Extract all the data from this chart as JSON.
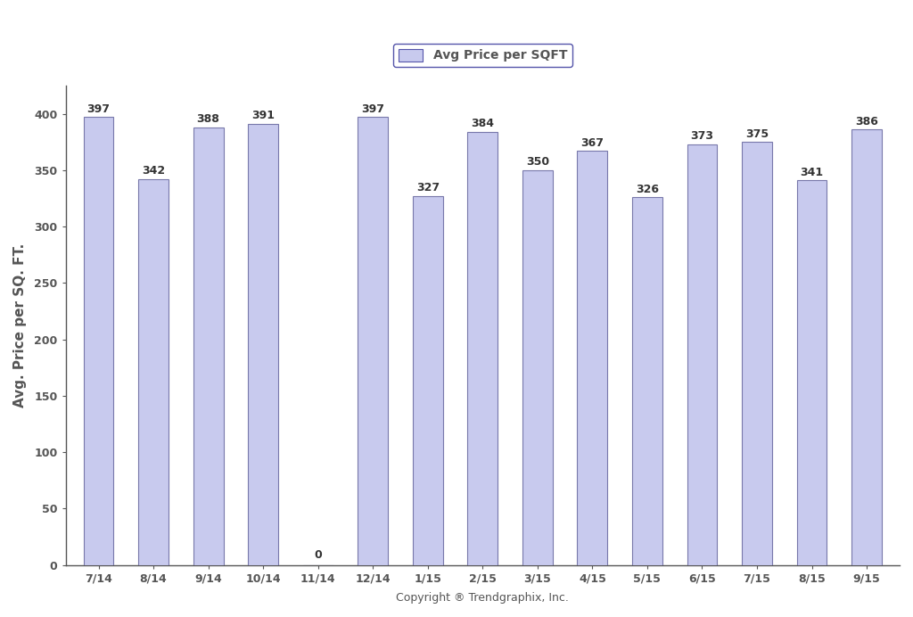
{
  "categories": [
    "7/14",
    "8/14",
    "9/14",
    "10/14",
    "11/14",
    "12/14",
    "1/15",
    "2/15",
    "3/15",
    "4/15",
    "5/15",
    "6/15",
    "7/15",
    "8/15",
    "9/15"
  ],
  "values": [
    397,
    342,
    388,
    391,
    0,
    397,
    327,
    384,
    350,
    367,
    326,
    373,
    375,
    341,
    386
  ],
  "bar_color": "#c8caee",
  "bar_edge_color": "#7878aa",
  "ylabel": "Avg. Price per SQ. FT.",
  "xlabel": "Copyright ® Trendgraphix, Inc.",
  "legend_label": "Avg Price per SQFT",
  "ylim": [
    0,
    425
  ],
  "yticks": [
    0,
    50,
    100,
    150,
    200,
    250,
    300,
    350,
    400
  ],
  "bar_width": 0.55,
  "background_color": "#ffffff",
  "label_fontsize": 9,
  "tick_fontsize": 9,
  "ylabel_fontsize": 11,
  "xlabel_fontsize": 9,
  "legend_fontsize": 10,
  "label_color": "#333333",
  "axis_color": "#555555",
  "legend_edge_color": "#5555aa"
}
